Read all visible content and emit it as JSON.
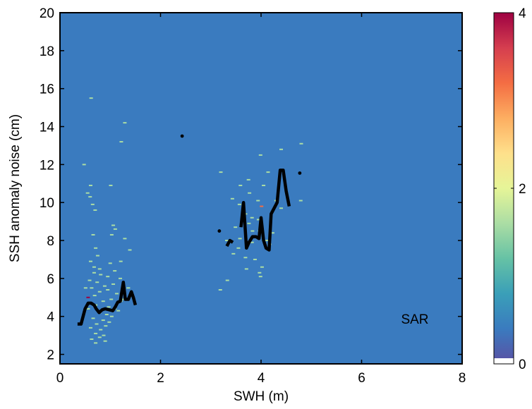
{
  "colors": {
    "background": "#3a7bbf",
    "frame": "#000000",
    "mean_line": "#000000",
    "colormap": [
      "#ffffff",
      "#5b4fa3",
      "#3a7bbf",
      "#3a9fb8",
      "#66c2a5",
      "#abdda4",
      "#e6f598",
      "#fee08b",
      "#fdae61",
      "#f46d43",
      "#d53e4f",
      "#9e0142"
    ]
  },
  "chart_data": {
    "type": "heatmap",
    "title": "",
    "xlabel": "SWH (m)",
    "ylabel": "SSH anomaly noise (cm)",
    "xlim": [
      0,
      8
    ],
    "ylim": [
      1.5,
      20
    ],
    "xticks": [
      0,
      2,
      4,
      6,
      8
    ],
    "yticks": [
      2,
      4,
      6,
      8,
      10,
      12,
      14,
      16,
      18,
      20
    ],
    "annotation": "SAR",
    "colorbar": {
      "min": 0,
      "max": 4,
      "ticks": [
        0,
        2,
        4
      ]
    },
    "grid": false,
    "cells": [
      [
        0.62,
        15.5,
        1.6
      ],
      [
        1.29,
        14.2,
        1.6
      ],
      [
        1.22,
        13.2,
        1.6
      ],
      [
        0.48,
        12.0,
        1.6
      ],
      [
        0.61,
        10.9,
        1.6
      ],
      [
        1.01,
        10.9,
        1.6
      ],
      [
        0.55,
        10.5,
        1.6
      ],
      [
        0.6,
        10.3,
        1.6
      ],
      [
        0.65,
        9.9,
        1.6
      ],
      [
        0.7,
        9.6,
        1.6
      ],
      [
        0.66,
        8.3,
        1.6
      ],
      [
        1.06,
        8.8,
        1.6
      ],
      [
        1.1,
        8.6,
        1.6
      ],
      [
        1.03,
        8.3,
        1.6
      ],
      [
        1.29,
        8.1,
        1.6
      ],
      [
        1.39,
        7.5,
        1.6
      ],
      [
        0.71,
        7.6,
        1.6
      ],
      [
        0.75,
        7.2,
        1.6
      ],
      [
        0.61,
        6.9,
        1.6
      ],
      [
        1.21,
        6.9,
        1.6
      ],
      [
        1.0,
        6.8,
        1.6
      ],
      [
        0.68,
        6.6,
        1.6
      ],
      [
        0.79,
        6.5,
        1.6
      ],
      [
        1.09,
        6.4,
        1.6
      ],
      [
        0.68,
        6.3,
        1.6
      ],
      [
        0.81,
        6.2,
        1.6
      ],
      [
        0.95,
        6.1,
        1.6
      ],
      [
        1.2,
        6.0,
        1.6
      ],
      [
        0.59,
        5.9,
        1.6
      ],
      [
        0.74,
        5.8,
        1.6
      ],
      [
        1.06,
        5.7,
        1.6
      ],
      [
        0.89,
        5.6,
        1.6
      ],
      [
        0.63,
        5.5,
        1.6
      ],
      [
        0.95,
        5.4,
        1.6
      ],
      [
        0.79,
        5.3,
        1.6
      ],
      [
        1.13,
        5.2,
        1.6
      ],
      [
        0.69,
        5.1,
        1.6
      ],
      [
        0.56,
        5.0,
        3.8
      ],
      [
        1.02,
        4.9,
        1.6
      ],
      [
        0.86,
        4.8,
        1.6
      ],
      [
        1.21,
        4.8,
        1.6
      ],
      [
        0.71,
        4.6,
        1.6
      ],
      [
        0.97,
        4.5,
        1.6
      ],
      [
        1.09,
        4.4,
        1.6
      ],
      [
        0.79,
        4.2,
        1.6
      ],
      [
        0.93,
        4.1,
        1.6
      ],
      [
        1.03,
        4.0,
        1.6
      ],
      [
        0.66,
        3.9,
        1.6
      ],
      [
        0.86,
        3.8,
        1.6
      ],
      [
        0.98,
        3.7,
        1.6
      ],
      [
        0.73,
        3.6,
        1.6
      ],
      [
        0.91,
        3.5,
        1.6
      ],
      [
        0.61,
        3.4,
        1.6
      ],
      [
        0.81,
        3.3,
        1.6
      ],
      [
        0.71,
        3.1,
        1.6
      ],
      [
        0.87,
        3.0,
        1.6
      ],
      [
        0.79,
        2.9,
        1.6
      ],
      [
        0.63,
        2.8,
        1.6
      ],
      [
        0.9,
        2.7,
        1.6
      ],
      [
        0.71,
        2.6,
        1.6
      ],
      [
        0.51,
        5.5,
        1.6
      ],
      [
        0.56,
        4.4,
        1.6
      ],
      [
        1.16,
        4.3,
        1.6
      ],
      [
        1.26,
        4.9,
        1.6
      ],
      [
        1.36,
        5.5,
        1.6
      ],
      [
        4.4,
        12.8,
        1.6
      ],
      [
        4.8,
        13.1,
        1.6
      ],
      [
        3.99,
        12.5,
        1.6
      ],
      [
        4.14,
        11.6,
        1.6
      ],
      [
        3.2,
        11.6,
        1.6
      ],
      [
        3.75,
        11.2,
        1.6
      ],
      [
        3.59,
        10.9,
        1.6
      ],
      [
        4.05,
        10.9,
        1.6
      ],
      [
        3.77,
        10.5,
        1.6
      ],
      [
        3.43,
        10.2,
        1.6
      ],
      [
        3.94,
        10.1,
        1.6
      ],
      [
        4.3,
        10.1,
        1.6
      ],
      [
        4.79,
        10.1,
        1.6
      ],
      [
        3.57,
        9.9,
        1.6
      ],
      [
        4.01,
        9.8,
        3.0
      ],
      [
        4.4,
        9.7,
        1.6
      ],
      [
        3.69,
        9.4,
        1.6
      ],
      [
        3.82,
        9.2,
        1.6
      ],
      [
        3.95,
        9.1,
        1.6
      ],
      [
        3.49,
        8.7,
        1.6
      ],
      [
        3.76,
        8.9,
        1.6
      ],
      [
        3.83,
        8.5,
        1.6
      ],
      [
        4.23,
        8.4,
        1.6
      ],
      [
        3.91,
        8.2,
        1.6
      ],
      [
        3.58,
        8.1,
        1.6
      ],
      [
        3.32,
        8.0,
        1.6
      ],
      [
        3.82,
        7.9,
        1.6
      ],
      [
        4.17,
        7.8,
        1.6
      ],
      [
        3.55,
        7.6,
        1.6
      ],
      [
        3.45,
        7.3,
        1.6
      ],
      [
        3.69,
        7.1,
        1.6
      ],
      [
        3.88,
        7.0,
        1.6
      ],
      [
        4.02,
        6.6,
        1.6
      ],
      [
        3.71,
        6.5,
        1.6
      ],
      [
        3.97,
        6.3,
        1.6
      ],
      [
        3.99,
        6.1,
        1.6
      ],
      [
        3.33,
        5.9,
        1.6
      ],
      [
        3.19,
        5.4,
        1.6
      ],
      [
        3.97,
        8.5,
        1.6
      ],
      [
        4.12,
        8.0,
        1.6
      ]
    ],
    "series": [
      {
        "x": [
          0.35,
          0.42,
          0.5,
          0.56,
          0.62,
          0.68,
          0.72,
          0.78,
          0.84,
          0.9,
          0.98,
          1.05,
          1.1,
          1.15,
          1.2,
          1.26,
          1.3,
          1.36,
          1.42,
          1.46,
          1.5
        ],
        "y": [
          3.6,
          3.6,
          4.4,
          4.7,
          4.7,
          4.6,
          4.4,
          4.2,
          4.35,
          4.4,
          4.35,
          4.3,
          4.5,
          4.75,
          4.8,
          5.8,
          4.9,
          4.9,
          5.3,
          5.0,
          4.6
        ]
      },
      {
        "x": [
          3.32,
          3.38,
          3.44
        ],
        "y": [
          7.7,
          8.0,
          7.9
        ]
      },
      {
        "x": [
          3.6,
          3.65,
          3.71,
          3.76,
          3.83,
          3.9,
          3.96,
          4.0,
          4.05,
          4.1,
          4.16,
          4.2,
          4.26,
          4.32,
          4.38,
          4.44,
          4.5,
          4.56
        ],
        "y": [
          8.7,
          10.0,
          7.6,
          7.9,
          8.2,
          8.2,
          8.1,
          9.2,
          8.0,
          7.6,
          7.5,
          9.4,
          9.7,
          10.0,
          11.7,
          11.7,
          10.6,
          9.8
        ]
      }
    ],
    "points": [
      [
        2.43,
        13.5
      ],
      [
        3.17,
        8.5
      ],
      [
        4.77,
        11.55
      ]
    ]
  }
}
